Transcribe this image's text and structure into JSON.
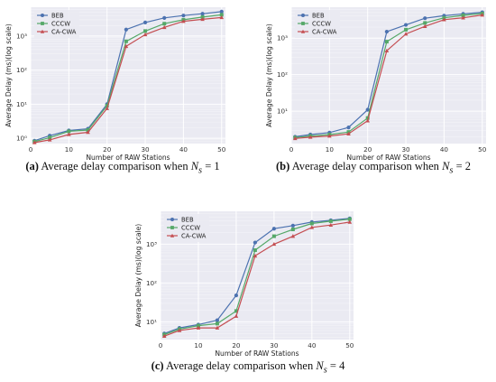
{
  "colors": {
    "BEB": "#4c72b0",
    "CCCW": "#55a868",
    "CA-CWA": "#c44e52",
    "plot_bg": "#eaeaf2",
    "grid": "#ffffff"
  },
  "chart_data": [
    {
      "id": "a",
      "type": "line",
      "xlabel": "Number of RAW Stations",
      "ylabel": "Average Delay (ms)(log scale)",
      "yscale": "log",
      "xlim": [
        0,
        51
      ],
      "ylim": [
        0.7,
        7000
      ],
      "xticks": [
        0,
        10,
        20,
        30,
        40,
        50
      ],
      "yticks": [
        1,
        10,
        100,
        1000
      ],
      "ytick_labels": [
        "10⁰",
        "10¹",
        "10²",
        "10³"
      ],
      "legend": "top-left",
      "x": [
        1,
        5,
        10,
        15,
        20,
        25,
        30,
        35,
        40,
        45,
        50
      ],
      "series": [
        {
          "name": "BEB",
          "values": [
            0.85,
            1.2,
            1.7,
            1.9,
            10,
            1550,
            2500,
            3400,
            4000,
            4500,
            5200
          ]
        },
        {
          "name": "CCCW",
          "values": [
            0.8,
            1.05,
            1.6,
            1.75,
            9,
            700,
            1400,
            2300,
            3000,
            3600,
            4200
          ]
        },
        {
          "name": "CA-CWA",
          "values": [
            0.75,
            0.9,
            1.3,
            1.5,
            7.5,
            500,
            1100,
            1800,
            2700,
            3100,
            3500
          ]
        }
      ],
      "caption": {
        "label": "(a)",
        "text": "Average delay comparison when",
        "math_var": "N",
        "math_sub": "s",
        "math_rest": " = 1"
      }
    },
    {
      "id": "b",
      "type": "line",
      "xlabel": "Number of RAW Stations",
      "ylabel": "Average Delay (ms)(log scale)",
      "yscale": "log",
      "xlim": [
        0,
        51
      ],
      "ylim": [
        1.3,
        7000
      ],
      "xticks": [
        0,
        10,
        20,
        30,
        40,
        50
      ],
      "yticks": [
        10,
        100,
        1000
      ],
      "ytick_labels": [
        "10¹",
        "10²",
        "10³"
      ],
      "legend": "top-left",
      "x": [
        1,
        5,
        10,
        15,
        20,
        25,
        30,
        35,
        40,
        45,
        50
      ],
      "series": [
        {
          "name": "BEB",
          "values": [
            2.0,
            2.3,
            2.6,
            3.6,
            11,
            1500,
            2300,
            3500,
            4100,
            4600,
            5100
          ]
        },
        {
          "name": "CCCW",
          "values": [
            1.9,
            2.1,
            2.3,
            2.7,
            6.5,
            800,
            1700,
            2600,
            3600,
            4200,
            4700
          ]
        },
        {
          "name": "CA-CWA",
          "values": [
            1.8,
            1.95,
            2.1,
            2.4,
            5.5,
            450,
            1300,
            2100,
            3200,
            3600,
            4300
          ]
        }
      ],
      "caption": {
        "label": "(b)",
        "text": "Average delay comparison when",
        "math_var": "N",
        "math_sub": "s",
        "math_rest": " = 2"
      }
    },
    {
      "id": "c",
      "type": "line",
      "xlabel": "Number of RAW Stations",
      "ylabel": "Average Delay (ms)(log scale)",
      "yscale": "log",
      "xlim": [
        0,
        51
      ],
      "ylim": [
        3.5,
        7000
      ],
      "xticks": [
        0,
        10,
        20,
        30,
        40,
        50
      ],
      "yticks": [
        10,
        100,
        1000
      ],
      "ytick_labels": [
        "10¹",
        "10²",
        "10³"
      ],
      "legend": "top-left",
      "x": [
        1,
        5,
        10,
        15,
        20,
        25,
        30,
        35,
        40,
        45,
        50
      ],
      "series": [
        {
          "name": "BEB",
          "values": [
            5.0,
            7.0,
            8.5,
            11,
            48,
            1100,
            2500,
            3000,
            3700,
            4100,
            4600
          ]
        },
        {
          "name": "CCCW",
          "values": [
            4.7,
            6.5,
            8.0,
            9.0,
            19,
            700,
            1600,
            2400,
            3400,
            3900,
            4400
          ]
        },
        {
          "name": "CA-CWA",
          "values": [
            4.3,
            6.0,
            7.0,
            7.0,
            14,
            500,
            1000,
            1600,
            2700,
            3100,
            3700
          ]
        }
      ],
      "caption": {
        "label": "(c)",
        "text": "Average delay comparison when",
        "math_var": "N",
        "math_sub": "s",
        "math_rest": " = 4"
      }
    }
  ]
}
